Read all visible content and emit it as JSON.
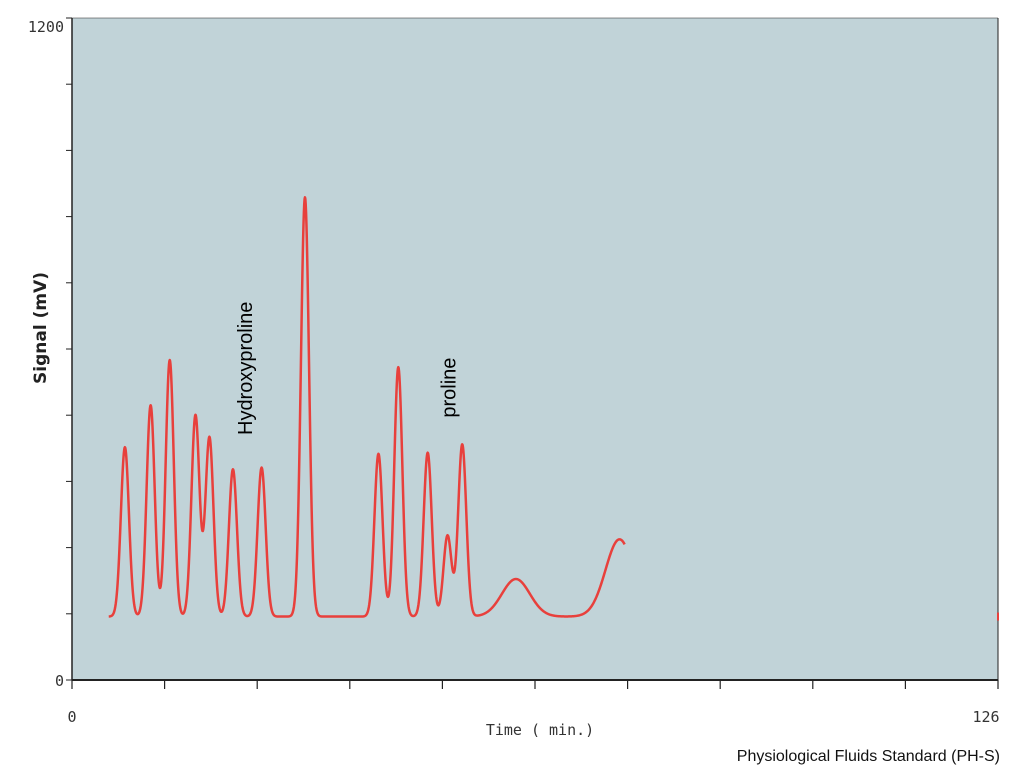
{
  "chart_data": {
    "type": "line",
    "title": "",
    "xlabel": "Time ( min.)",
    "ylabel": "Signal (mV)",
    "xlim": [
      0,
      126
    ],
    "ylim": [
      0,
      1200
    ],
    "x_tick_labels": [
      "0",
      "126"
    ],
    "y_tick_labels": [
      "0",
      "1200"
    ],
    "grid": false,
    "background_color": "#c1d3d8",
    "series_color": "#e8403c",
    "baseline": 115,
    "peaks": [
      {
        "x": 7.2,
        "y": 422
      },
      {
        "x": 10.7,
        "y": 498
      },
      {
        "x": 13.3,
        "y": 580
      },
      {
        "x": 16.8,
        "y": 480
      },
      {
        "x": 18.7,
        "y": 440
      },
      {
        "x": 21.9,
        "y": 382
      },
      {
        "x": 25.8,
        "y": 385
      },
      {
        "x": 31.7,
        "y": 875
      },
      {
        "x": 41.7,
        "y": 410
      },
      {
        "x": 44.4,
        "y": 567
      },
      {
        "x": 48.4,
        "y": 412
      },
      {
        "x": 51.1,
        "y": 262
      },
      {
        "x": 53.1,
        "y": 427
      },
      {
        "x": 60.4,
        "y": 183
      },
      {
        "x": 74.5,
        "y": 255
      }
    ],
    "annotations": [
      {
        "text": "Hydroxyproline",
        "x": 24.5,
        "y": 565
      },
      {
        "text": "proline",
        "x": 52.2,
        "y": 530
      }
    ]
  },
  "footer_text": "Physiological Fluids Standard (PH-S)"
}
